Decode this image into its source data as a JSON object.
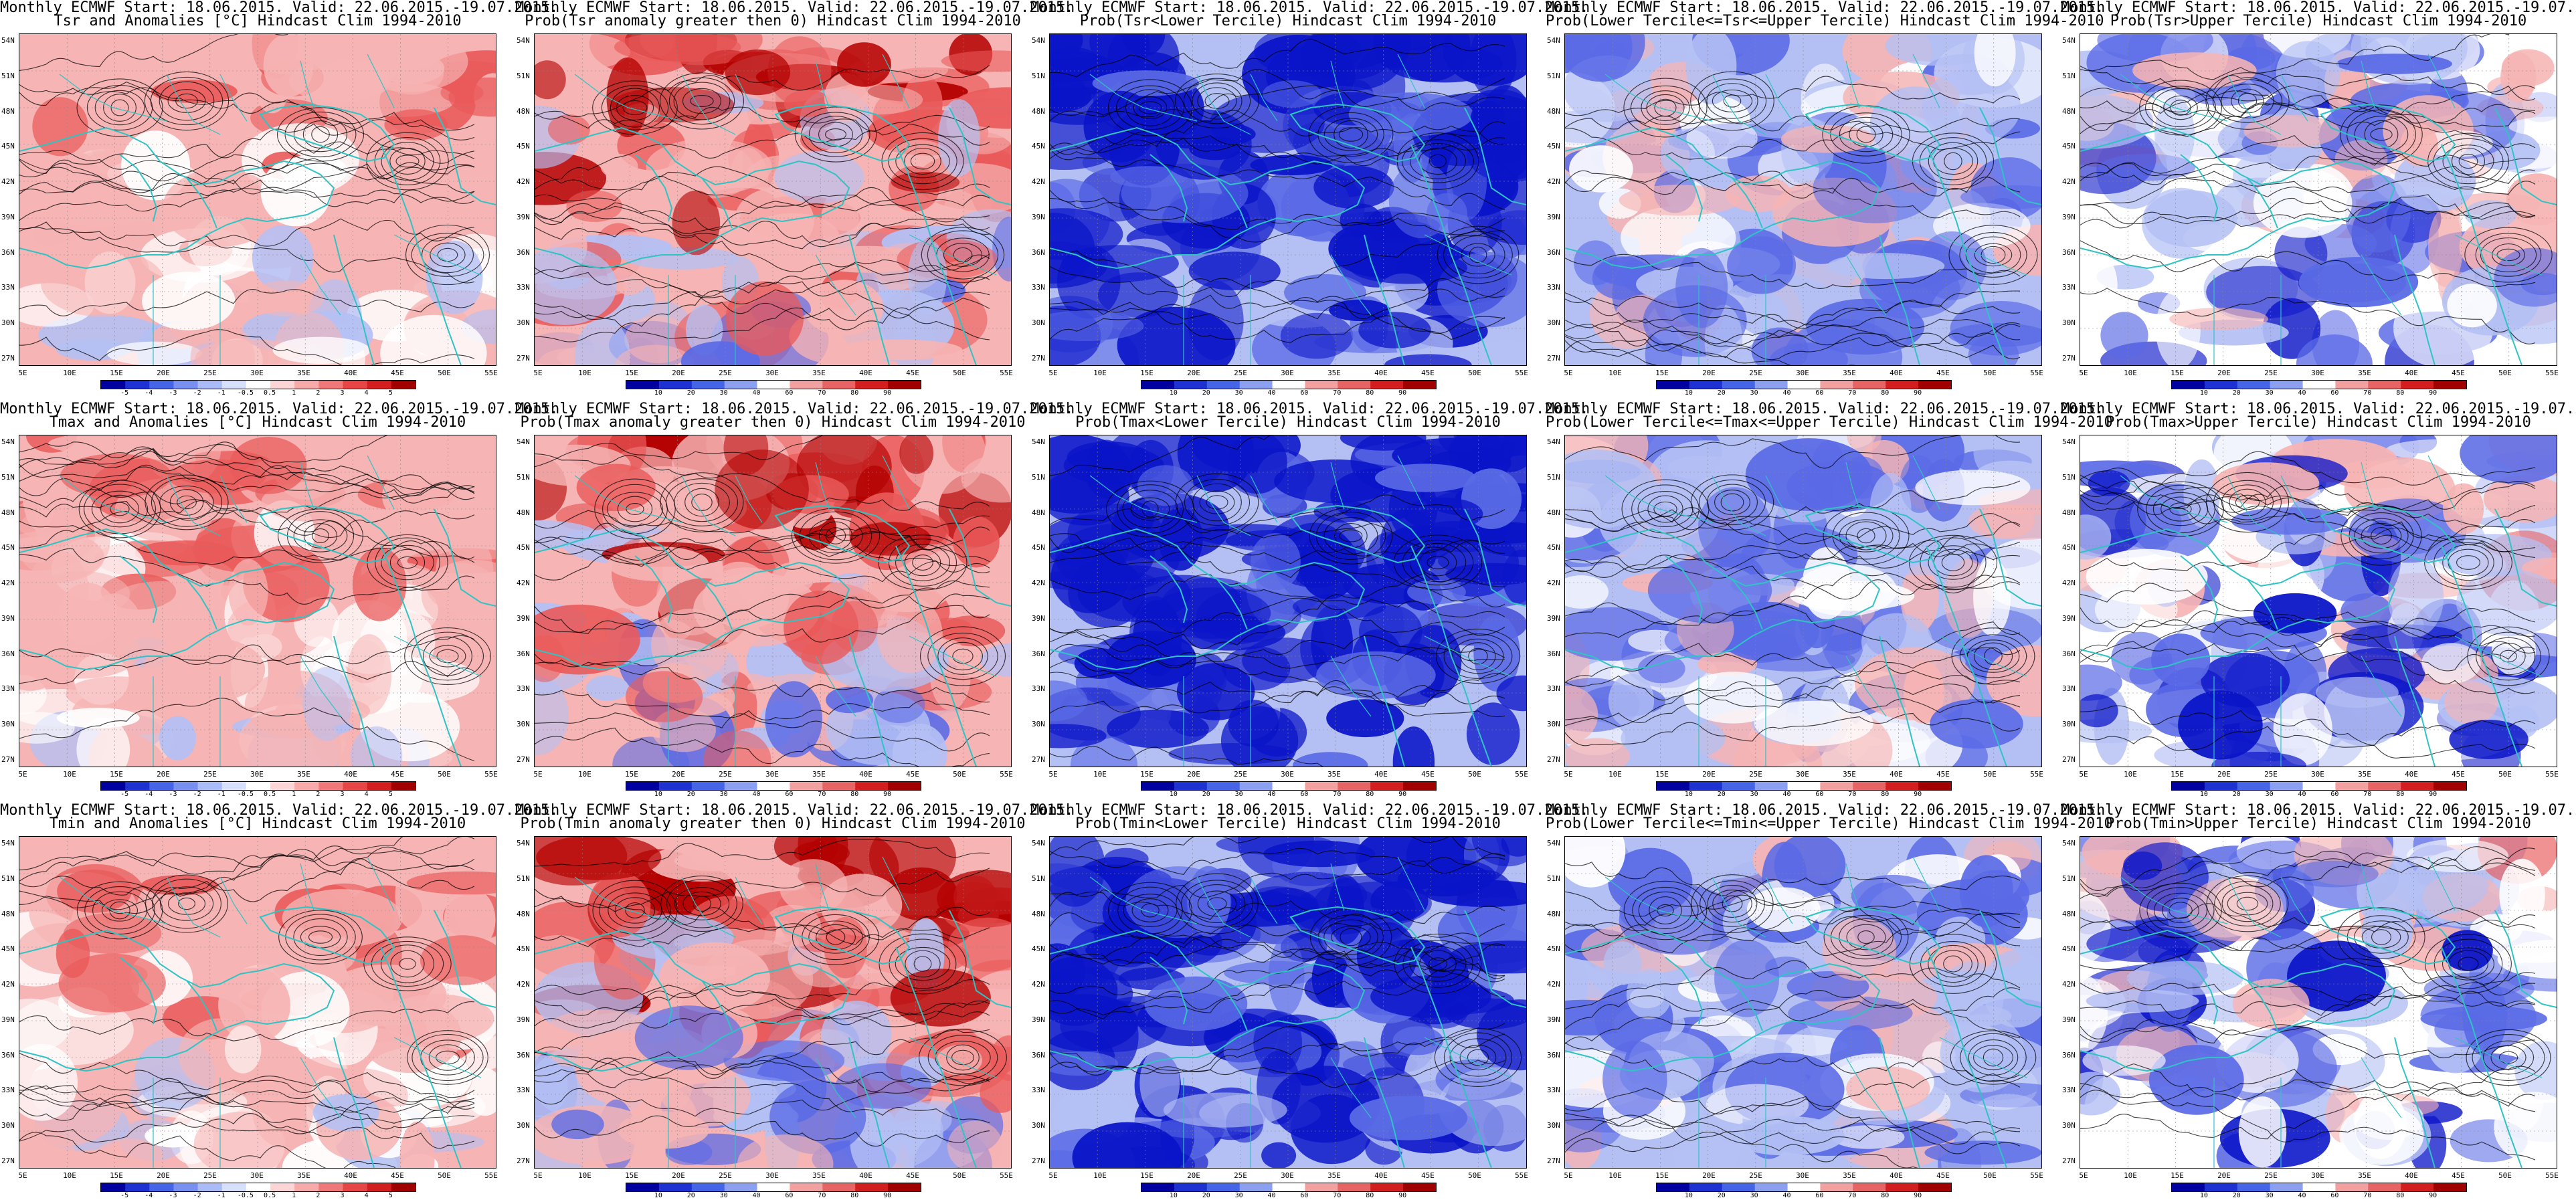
{
  "header": {
    "line1": "Monthly ECMWF Start: 18.06.2015. Valid: 22.06.2015.-19.07.2015."
  },
  "axes": {
    "lat_ticks": [
      "54N",
      "51N",
      "48N",
      "45N",
      "42N",
      "39N",
      "36N",
      "33N",
      "30N",
      "27N"
    ],
    "lon_ticks": [
      "5E",
      "10E",
      "15E",
      "20E",
      "25E",
      "30E",
      "35E",
      "40E",
      "45E",
      "50E",
      "55E"
    ]
  },
  "colors": {
    "land_outline": "#2ec4c4",
    "contour": "#000000",
    "strong_blue": "#0a14c8",
    "mid_blue": "#5a6ae6",
    "light_blue": "#b4c0f4",
    "white": "#ffffff",
    "light_red": "#f6b4b4",
    "mid_red": "#ea5a5a",
    "strong_red": "#b40000"
  },
  "colorbars": {
    "anomaly": [
      "-5",
      "-4",
      "-3",
      "-2",
      "-1",
      "-0.5",
      "0.5",
      "1",
      "2",
      "3",
      "4",
      "5"
    ],
    "probability": [
      "10",
      "20",
      "30",
      "40",
      "60",
      "70",
      "80",
      "90"
    ]
  },
  "panels": [
    {
      "row": 0,
      "col": 0,
      "title": "Tsr and Anomalies [°C] Hindcast Clim 1994-2010",
      "cbar": "anomaly",
      "field": "anom_tsr"
    },
    {
      "row": 0,
      "col": 1,
      "title": "Prob(Tsr anomaly greater then 0) Hindcast Clim 1994-2010",
      "cbar": "probability",
      "field": "prob_pos"
    },
    {
      "row": 0,
      "col": 2,
      "title": "Prob(Tsr<Lower Tercile) Hindcast Clim 1994-2010",
      "cbar": "probability",
      "field": "prob_low"
    },
    {
      "row": 0,
      "col": 3,
      "title": "Prob(Lower Tercile<=Tsr<=Upper Tercile) Hindcast Clim 1994-2010",
      "cbar": "probability",
      "field": "prob_mid"
    },
    {
      "row": 0,
      "col": 4,
      "title": "Prob(Tsr>Upper Tercile) Hindcast Clim 1994-2010",
      "cbar": "probability",
      "field": "prob_up"
    },
    {
      "row": 1,
      "col": 0,
      "title": "Tmax and Anomalies [°C] Hindcast Clim 1994-2010",
      "cbar": "anomaly",
      "field": "anom_tmax"
    },
    {
      "row": 1,
      "col": 1,
      "title": "Prob(Tmax anomaly greater then 0) Hindcast Clim 1994-2010",
      "cbar": "probability",
      "field": "prob_pos2"
    },
    {
      "row": 1,
      "col": 2,
      "title": "Prob(Tmax<Lower Tercile) Hindcast Clim 1994-2010",
      "cbar": "probability",
      "field": "prob_low2"
    },
    {
      "row": 1,
      "col": 3,
      "title": "Prob(Lower Tercile<=Tmax<=Upper Tercile) Hindcast Clim 1994-2010",
      "cbar": "probability",
      "field": "prob_mid2"
    },
    {
      "row": 1,
      "col": 4,
      "title": "Prob(Tmax>Upper Tercile) Hindcast Clim 1994-2010",
      "cbar": "probability",
      "field": "prob_up2"
    },
    {
      "row": 2,
      "col": 0,
      "title": "Tmin and Anomalies [°C] Hindcast Clim 1994-2010",
      "cbar": "anomaly",
      "field": "anom_tmin"
    },
    {
      "row": 2,
      "col": 1,
      "title": "Prob(Tmin anomaly greater then 0) Hindcast Clim 1994-2010",
      "cbar": "probability",
      "field": "prob_pos3"
    },
    {
      "row": 2,
      "col": 2,
      "title": "Prob(Tmin<Lower Tercile) Hindcast Clim 1994-2010",
      "cbar": "probability",
      "field": "prob_low3"
    },
    {
      "row": 2,
      "col": 3,
      "title": "Prob(Lower Tercile<=Tmin<=Upper Tercile) Hindcast Clim 1994-2010",
      "cbar": "probability",
      "field": "prob_mid3"
    },
    {
      "row": 2,
      "col": 4,
      "title": "Prob(Tmin>Upper Tercile) Hindcast Clim 1994-2010",
      "cbar": "probability",
      "field": "prob_up3"
    }
  ]
}
